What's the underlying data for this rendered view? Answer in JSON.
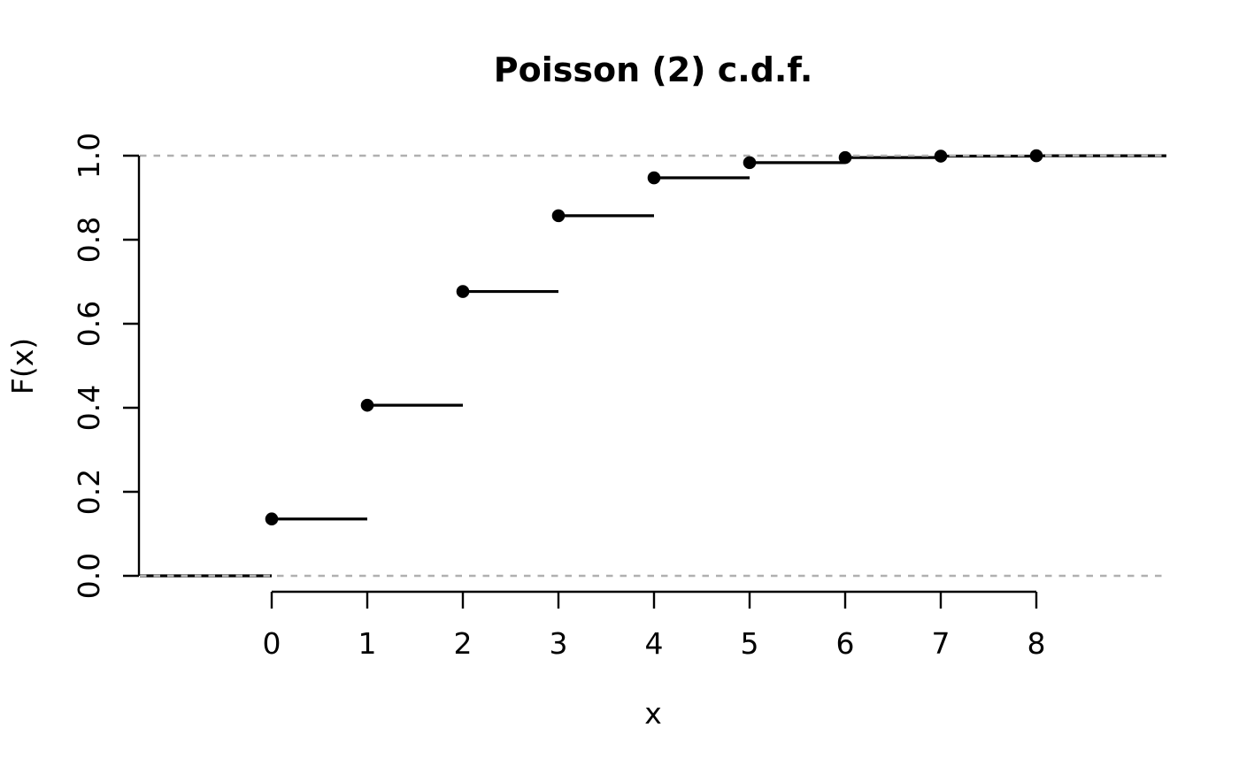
{
  "chart_data": {
    "type": "step",
    "title": "Poisson (2) c.d.f.",
    "xlabel": "x",
    "ylabel": "F(x)",
    "x": [
      0,
      1,
      2,
      3,
      4,
      5,
      6,
      7,
      8
    ],
    "y": [
      0.1353,
      0.406,
      0.6767,
      0.8571,
      0.9473,
      0.9834,
      0.9955,
      0.9989,
      0.9998
    ],
    "baseline_y": 0,
    "xlim": [
      -1.38,
      9.36
    ],
    "ylim": [
      0,
      1
    ],
    "xticks": [
      0,
      1,
      2,
      3,
      4,
      5,
      6,
      7,
      8
    ],
    "yticks": [
      {
        "label": "0.0",
        "value": 0
      },
      {
        "label": "0.2",
        "value": 0.2
      },
      {
        "label": "0.4",
        "value": 0.4
      },
      {
        "label": "0.6",
        "value": 0.6
      },
      {
        "label": "0.8",
        "value": 0.8
      },
      {
        "label": "1.0",
        "value": 1
      }
    ],
    "guide_lines_y": [
      0,
      1
    ],
    "guide_line_style": "dashed",
    "marker": "filled-circle",
    "grid": false,
    "legend": null,
    "colors": {
      "line": "#000000",
      "point": "#000000",
      "axis": "#000000",
      "guide": "#b0b0b0",
      "background": "#ffffff"
    }
  }
}
